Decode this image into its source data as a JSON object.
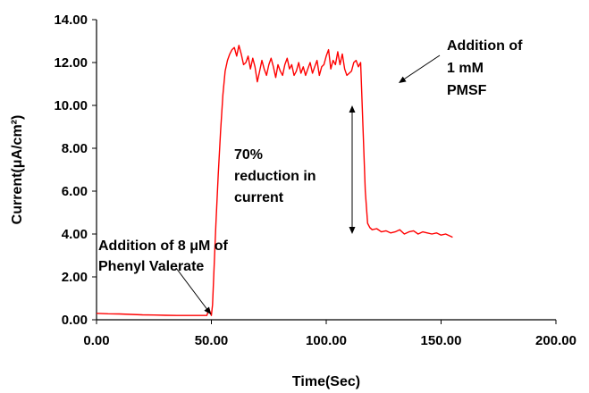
{
  "chart_data": {
    "type": "line",
    "xlabel": "Time(Sec)",
    "ylabel": "Current(μA/cm²)",
    "xlim": [
      0,
      200
    ],
    "ylim": [
      0,
      14
    ],
    "grid": false,
    "x_ticks": [
      "0.00",
      "50.00",
      "100.00",
      "150.00",
      "200.00"
    ],
    "y_ticks": [
      "0.00",
      "2.00",
      "4.00",
      "6.00",
      "8.00",
      "10.00",
      "12.00",
      "14.00"
    ],
    "series": [
      {
        "color": "#ff0000",
        "x": [
          0,
          5,
          10,
          15,
          20,
          25,
          30,
          35,
          40,
          45,
          48,
          49,
          50,
          50.5,
          51,
          52,
          53,
          54,
          55,
          56,
          57,
          58,
          59,
          60,
          61,
          62,
          63,
          64,
          65,
          66,
          67,
          68,
          69,
          70,
          71,
          72,
          73,
          74,
          75,
          76,
          77,
          78,
          79,
          80,
          81,
          82,
          83,
          84,
          85,
          86,
          87,
          88,
          89,
          90,
          91,
          92,
          93,
          94,
          95,
          96,
          97,
          98,
          99,
          100,
          101,
          102,
          103,
          104,
          105,
          106,
          107,
          108,
          109,
          110,
          111,
          112,
          113,
          114,
          115,
          116,
          117,
          118,
          119,
          120,
          122,
          124,
          126,
          128,
          130,
          132,
          134,
          136,
          138,
          140,
          142,
          144,
          146,
          148,
          150,
          152,
          154,
          155
        ],
        "y": [
          0.3,
          0.28,
          0.27,
          0.25,
          0.23,
          0.22,
          0.21,
          0.2,
          0.2,
          0.2,
          0.2,
          0.5,
          0.2,
          0.7,
          2.0,
          4.5,
          6.8,
          8.8,
          10.5,
          11.6,
          12.1,
          12.4,
          12.6,
          12.7,
          12.3,
          12.8,
          12.4,
          11.9,
          12.0,
          12.3,
          11.7,
          12.2,
          11.8,
          11.1,
          11.6,
          12.1,
          11.7,
          11.4,
          11.9,
          12.2,
          11.8,
          11.3,
          11.9,
          11.6,
          11.4,
          11.9,
          12.2,
          11.7,
          11.9,
          11.4,
          11.6,
          12.0,
          11.5,
          11.8,
          11.4,
          11.7,
          12.0,
          11.5,
          11.8,
          12.1,
          11.4,
          11.8,
          11.9,
          12.3,
          12.6,
          11.7,
          12.1,
          11.9,
          12.5,
          11.9,
          12.4,
          11.7,
          11.4,
          11.5,
          11.6,
          12.0,
          12.1,
          11.8,
          12.0,
          9.0,
          6.0,
          4.5,
          4.3,
          4.2,
          4.25,
          4.1,
          4.15,
          4.05,
          4.1,
          4.2,
          4.0,
          4.1,
          4.15,
          4.0,
          4.1,
          4.05,
          4.0,
          4.05,
          3.95,
          4.0,
          3.9,
          3.85
        ]
      }
    ],
    "annotations": [
      {
        "id": "phenyl",
        "lines": [
          "Addition of 8 μM of",
          "Phenyl Valerate"
        ]
      },
      {
        "id": "reduction",
        "lines": [
          "70%",
          "reduction in",
          "current"
        ]
      },
      {
        "id": "pmsf",
        "lines": [
          "Addition of",
          "1 mM",
          "PMSF"
        ]
      }
    ]
  }
}
